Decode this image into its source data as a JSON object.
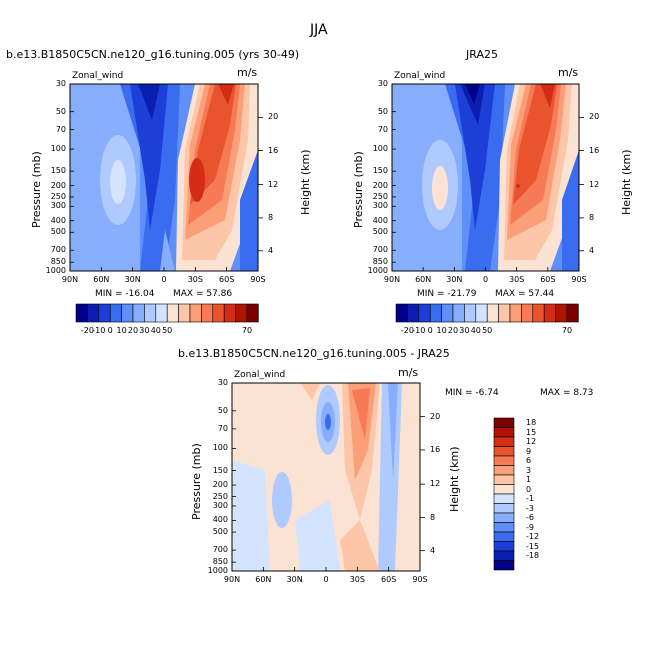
{
  "figure": {
    "title": "JJA",
    "colors": [
      "#00008a",
      "#0a1fb0",
      "#1c3fd8",
      "#3a6cf0",
      "#5f8ff8",
      "#86aefc",
      "#afcaff",
      "#d4e4ff",
      "#fbe3d4",
      "#fdc6a9",
      "#fb9f79",
      "#f57a55",
      "#e9542f",
      "#d32d17",
      "#b01205",
      "#7a0000"
    ]
  },
  "chart_data": [
    {
      "type": "heatmap",
      "title": "b.e13.B1850C5CN.ne120_g16.tuning.005 (yrs 30-49)",
      "variable": "Zonal_wind",
      "units": "m/s",
      "xlabel": "",
      "ylabel": "Pressure (mb)",
      "y2label": "Height (km)",
      "x_ticks": [
        "90N",
        "60N",
        "30N",
        "0",
        "30S",
        "60S",
        "90S"
      ],
      "y_ticks": [
        "30",
        "50",
        "70",
        "100",
        "150",
        "200",
        "250",
        "300",
        "400",
        "500",
        "700",
        "850",
        "1000"
      ],
      "y2_ticks": [
        "20",
        "16",
        "12",
        "8",
        "4"
      ],
      "min_label": "MIN = -16.04",
      "max_label": "MAX = 57.86",
      "colorbar_ticks": [
        "-20",
        "-10",
        "0",
        "10",
        "20",
        "30",
        "40",
        "50",
        "70"
      ],
      "min": -16.04,
      "max": 57.86
    },
    {
      "type": "heatmap",
      "title": "JRA25",
      "variable": "Zonal_wind",
      "units": "m/s",
      "xlabel": "",
      "ylabel": "Pressure (mb)",
      "y2label": "Height (km)",
      "x_ticks": [
        "90N",
        "60N",
        "30N",
        "0",
        "30S",
        "60S",
        "90S"
      ],
      "y_ticks": [
        "30",
        "50",
        "70",
        "100",
        "150",
        "200",
        "250",
        "300",
        "400",
        "500",
        "700",
        "850",
        "1000"
      ],
      "y2_ticks": [
        "20",
        "16",
        "12",
        "8",
        "4"
      ],
      "min_label": "MIN = -21.79",
      "max_label": "MAX = 57.44",
      "colorbar_ticks": [
        "-20",
        "-10",
        "0",
        "10",
        "20",
        "30",
        "40",
        "50",
        "70"
      ],
      "min": -21.79,
      "max": 57.44
    },
    {
      "type": "heatmap",
      "title": "b.e13.B1850C5CN.ne120_g16.tuning.005 - JRA25",
      "variable": "Zonal_wind",
      "units": "m/s",
      "xlabel": "",
      "ylabel": "Pressure (mb)",
      "y2label": "Height (km)",
      "x_ticks": [
        "90N",
        "60N",
        "30N",
        "0",
        "30S",
        "60S",
        "90S"
      ],
      "y_ticks": [
        "30",
        "50",
        "70",
        "100",
        "150",
        "200",
        "250",
        "300",
        "400",
        "500",
        "700",
        "850",
        "1000"
      ],
      "y2_ticks": [
        "20",
        "16",
        "12",
        "8",
        "4"
      ],
      "min_label": "MIN =   -6.74",
      "max_label": "MAX =    8.73",
      "colorbar_ticks": [
        "18",
        "15",
        "12",
        "9",
        "6",
        "3",
        "1",
        "0",
        "-1",
        "-3",
        "-6",
        "-9",
        "-12",
        "-15",
        "-18"
      ],
      "min": -6.74,
      "max": 8.73
    }
  ]
}
